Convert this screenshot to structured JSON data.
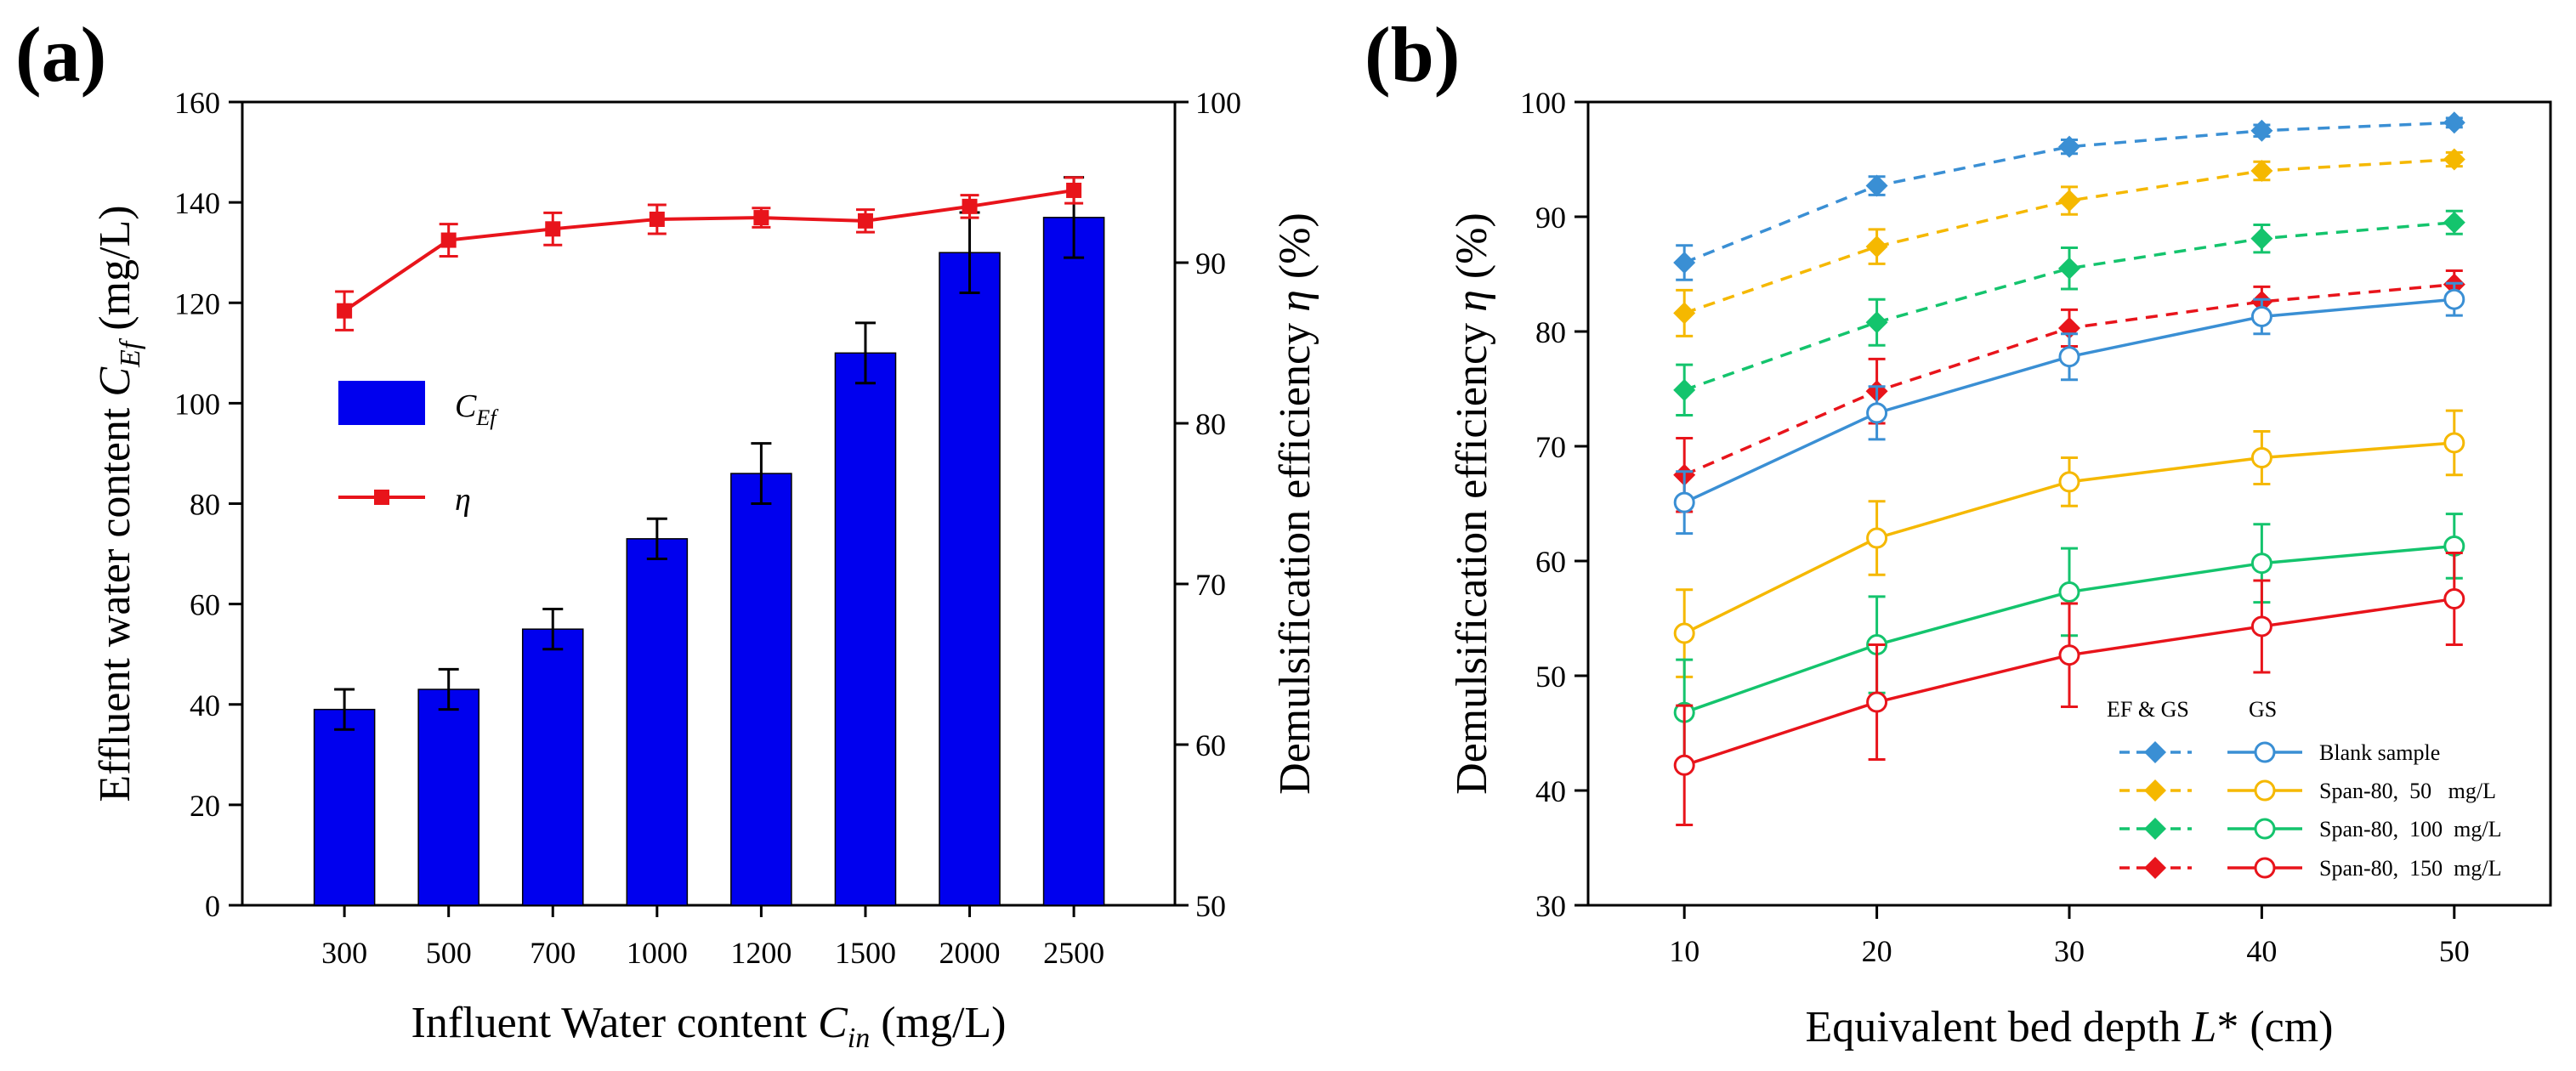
{
  "chart_data": [
    {
      "panel": "(a)",
      "type": "bar+line",
      "xlabel": {
        "main": "Influent Water content",
        "sym": "C",
        "sub": "in",
        "unit": "(mg/L)"
      },
      "ylabel_left": {
        "main": "Effluent water content",
        "sym": "C",
        "sub": "Ef",
        "unit": "(mg/L)"
      },
      "ylabel_right": {
        "main": "Demulsification efficiency",
        "sym": "η",
        "unit": "(%)"
      },
      "categories": [
        "300",
        "500",
        "700",
        "1000",
        "1200",
        "1500",
        "2000",
        "2500"
      ],
      "ylim_left": [
        0,
        160
      ],
      "yticks_left": [
        0,
        20,
        40,
        60,
        80,
        100,
        120,
        140,
        160
      ],
      "ylim_right": [
        50,
        100
      ],
      "yticks_right": [
        50,
        60,
        70,
        80,
        90,
        100
      ],
      "bar_series": {
        "name_sym": "C",
        "name_sub": "Ef",
        "color": "#0000ee",
        "values": [
          39,
          43,
          55,
          73,
          86,
          110,
          130,
          137
        ],
        "errors": [
          4,
          4,
          4,
          4,
          6,
          6,
          8,
          8
        ]
      },
      "line_series": {
        "name": "η",
        "color": "#e8141b",
        "values": [
          87.0,
          91.4,
          92.1,
          92.7,
          92.8,
          92.6,
          93.5,
          94.5
        ],
        "errors": [
          1.2,
          1.0,
          1.0,
          0.9,
          0.6,
          0.7,
          0.7,
          0.8
        ]
      }
    },
    {
      "panel": "(b)",
      "type": "line",
      "xlabel": {
        "main": "Equivalent bed depth",
        "sym": "L",
        "suffix": "* (cm)"
      },
      "ylabel": {
        "main": "Demulsification efficiency",
        "sym": "η",
        "unit": "(%)"
      },
      "x": [
        10,
        20,
        30,
        40,
        50
      ],
      "xlim": [
        5,
        55
      ],
      "xticks": [
        10,
        20,
        30,
        40,
        50
      ],
      "ylim": [
        30,
        100
      ],
      "yticks": [
        30,
        40,
        50,
        60,
        70,
        80,
        90,
        100
      ],
      "legend_headers": [
        "EF & GS",
        "GS"
      ],
      "series": [
        {
          "name": "Blank sample (EF & GS)",
          "group": "EF & GS",
          "color": "#3a8fd4",
          "marker": "diamond",
          "dashed": true,
          "values": [
            86.0,
            92.7,
            96.1,
            97.5,
            98.2
          ],
          "errors": [
            1.5,
            0.8,
            0.6,
            0.5,
            0.4
          ]
        },
        {
          "name": "Span-80, 50 mg/L (EF & GS)",
          "group": "EF & GS",
          "color": "#f5b800",
          "marker": "diamond",
          "dashed": true,
          "values": [
            81.6,
            87.4,
            91.4,
            94.0,
            95.0
          ],
          "errors": [
            2.0,
            1.5,
            1.2,
            0.8,
            0.6
          ]
        },
        {
          "name": "Span-80, 100 mg/L (EF & GS)",
          "group": "EF & GS",
          "color": "#14c46d",
          "marker": "diamond",
          "dashed": true,
          "values": [
            74.9,
            80.8,
            85.5,
            88.1,
            89.5
          ],
          "errors": [
            2.2,
            2.0,
            1.8,
            1.2,
            1.0
          ]
        },
        {
          "name": "Span-80, 150 mg/L (EF & GS)",
          "group": "EF & GS",
          "color": "#e8141b",
          "marker": "diamond",
          "dashed": true,
          "values": [
            67.5,
            74.8,
            80.3,
            82.6,
            84.1
          ],
          "errors": [
            3.2,
            2.8,
            1.6,
            1.3,
            1.2
          ]
        },
        {
          "name": "Blank sample",
          "group": "GS",
          "color": "#3a8fd4",
          "marker": "circle",
          "dashed": false,
          "values": [
            65.1,
            72.9,
            77.8,
            81.3,
            82.8
          ],
          "errors": [
            2.7,
            2.3,
            2.0,
            1.5,
            1.4
          ]
        },
        {
          "name": "Span-80, 50 mg/L",
          "group": "GS",
          "color": "#f5b800",
          "marker": "circle",
          "dashed": false,
          "values": [
            53.7,
            62.0,
            66.9,
            69.0,
            70.3
          ],
          "errors": [
            3.8,
            3.2,
            2.1,
            2.3,
            2.8
          ]
        },
        {
          "name": "Span-80, 100 mg/L",
          "group": "GS",
          "color": "#14c46d",
          "marker": "circle",
          "dashed": false,
          "values": [
            46.8,
            52.7,
            57.3,
            59.8,
            61.3
          ],
          "errors": [
            4.6,
            4.2,
            3.8,
            3.4,
            2.8
          ]
        },
        {
          "name": "Span-80, 150 mg/L",
          "group": "GS",
          "color": "#e8141b",
          "marker": "circle",
          "dashed": false,
          "values": [
            42.2,
            47.7,
            51.8,
            54.3,
            56.7
          ],
          "errors": [
            5.2,
            5.0,
            4.5,
            4.0,
            4.0
          ]
        }
      ],
      "legend_labels": [
        "Blank sample",
        "Span-80,  50   mg/L",
        "Span-80,  100  mg/L",
        "Span-80,  150  mg/L"
      ]
    }
  ]
}
